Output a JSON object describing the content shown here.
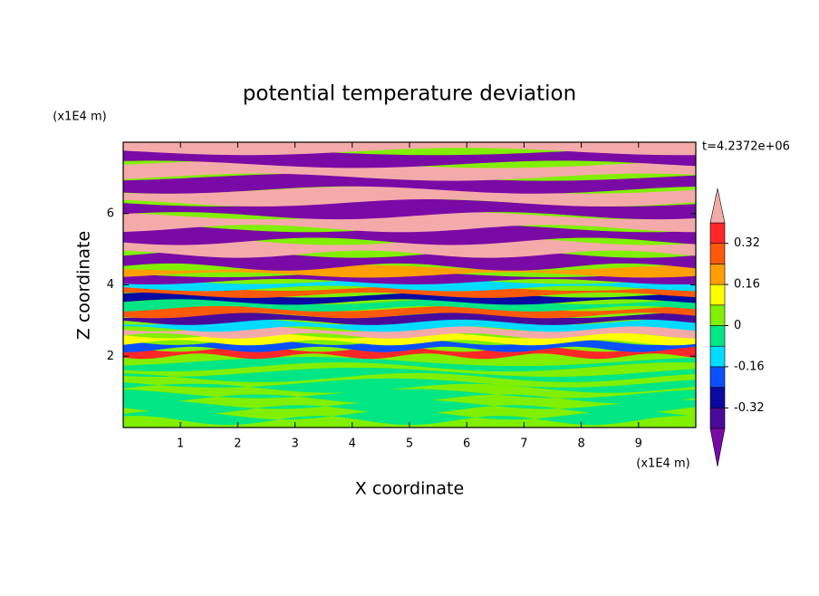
{
  "chart_data": {
    "type": "contour",
    "title": "potential temperature deviation",
    "x_label": "X coordinate",
    "y_label": "Z coordinate",
    "x_unit": "(x1E4 m)",
    "y_unit": "(x1E4 m)",
    "annotation": "t=4.2372e+06",
    "xlim": [
      0,
      10
    ],
    "ylim": [
      0,
      8
    ],
    "xticks": [
      1,
      2,
      3,
      4,
      5,
      6,
      7,
      8,
      9
    ],
    "yticks": [
      2,
      4,
      6
    ],
    "colorbar": {
      "levels": [
        -0.4,
        -0.32,
        -0.24,
        -0.16,
        -0.08,
        0,
        0.08,
        0.16,
        0.24,
        0.32,
        0.4
      ],
      "ticks": [
        -0.32,
        -0.16,
        0,
        0.16,
        0.32
      ],
      "colors": [
        "#7a0aa5",
        "#4a0a9a",
        "#0a0aa0",
        "#0a50ff",
        "#00dcff",
        "#00e684",
        "#80f000",
        "#ffff00",
        "#ffa000",
        "#ff5a0a",
        "#ff2828",
        "#f5aaaa"
      ]
    }
  }
}
